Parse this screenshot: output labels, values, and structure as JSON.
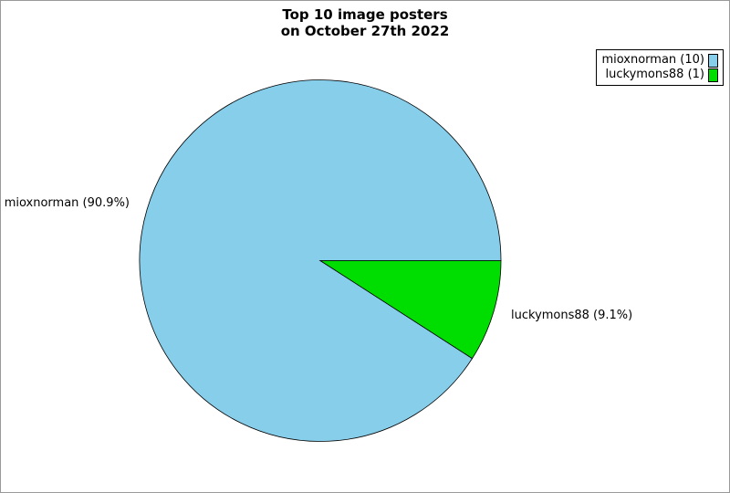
{
  "chart_data": {
    "type": "pie",
    "title_line1": "Top 10 image posters",
    "title_line2": "on October 27th 2022",
    "start_angle_deg": 0,
    "direction": "counterclockwise",
    "legend_position": "top-right",
    "outline_color": "#000000",
    "slices": [
      {
        "name": "mioxnorman",
        "count": 10,
        "percent": 90.9,
        "label": "mioxnorman (90.9%)",
        "legend_label": "mioxnorman (10)",
        "color": "#87CEEB"
      },
      {
        "name": "luckymons88",
        "count": 1,
        "percent": 9.1,
        "label": "luckymons88 (9.1%)",
        "legend_label": "luckymons88 (1)",
        "color": "#00DD00"
      }
    ]
  }
}
